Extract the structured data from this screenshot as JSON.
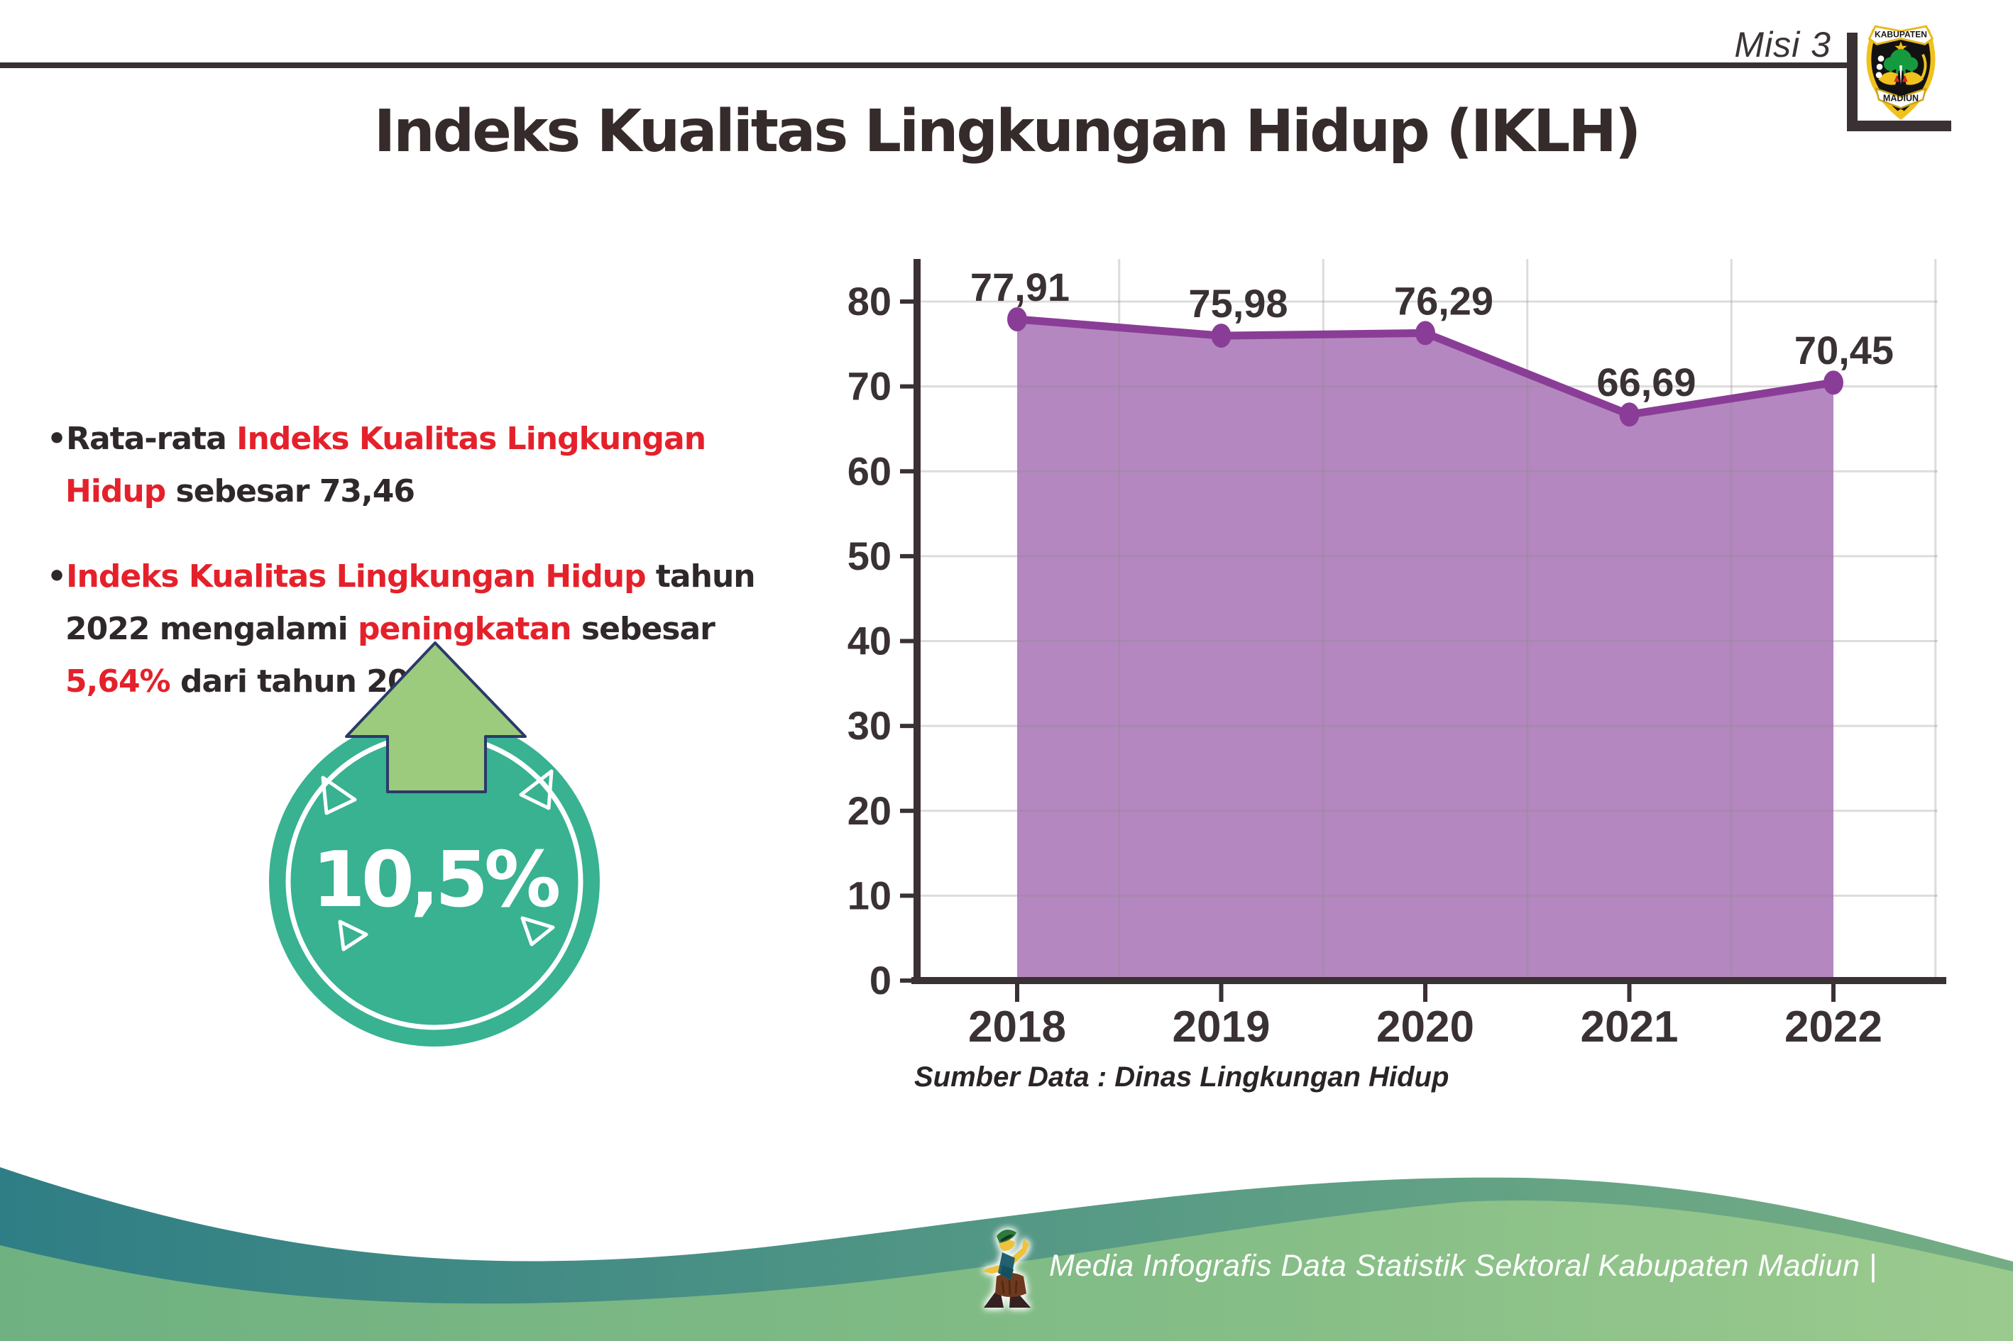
{
  "header": {
    "misi_label": "Misi 3"
  },
  "logo": {
    "top_text": "KABUPATEN",
    "bottom_text": "MADIUN"
  },
  "title": "Indeks Kualitas Lingkungan Hidup (IKLH)",
  "bullets": [
    {
      "segments": [
        {
          "text": "Rata-rata ",
          "color": "dark"
        },
        {
          "text": "Indeks Kualitas Lingkungan Hidup",
          "color": "red"
        },
        {
          "text": " sebesar 73,46",
          "color": "dark"
        }
      ]
    },
    {
      "segments": [
        {
          "text": "Indeks Kualitas Lingkungan Hidup",
          "color": "red"
        },
        {
          "text": " tahun 2022 mengalami ",
          "color": "dark"
        },
        {
          "text": "peningkatan",
          "color": "red"
        },
        {
          "text": " sebesar ",
          "color": "dark"
        },
        {
          "text": "5,64%",
          "color": "red"
        },
        {
          "text": " dari tahun 2021",
          "color": "dark"
        }
      ]
    }
  ],
  "badge": {
    "value": "10,5%",
    "direction": "up-arrow"
  },
  "chart_data": {
    "type": "area",
    "categories": [
      "2018",
      "2019",
      "2020",
      "2021",
      "2022"
    ],
    "values": [
      77.91,
      75.98,
      76.29,
      66.69,
      70.45
    ],
    "point_labels": [
      "77,91",
      "75,98",
      "76,29",
      "66,69",
      "70,45"
    ],
    "title": "",
    "xlabel": "",
    "ylabel": "",
    "ylim": [
      0,
      80
    ],
    "ytick_step": 10,
    "grid": true,
    "legend": "none",
    "source": "Sumber Data : Dinas Lingkungan Hidup"
  },
  "source_note": "Sumber Data : Dinas Lingkungan Hidup",
  "footer": {
    "text": "Media Infografis Data Statistik Sektoral Kabupaten Madiun |"
  },
  "colors": {
    "area_fill": "#b282bd",
    "trend_line": "#8a3d96",
    "axis": "#3a3134",
    "text_dark": "#2f282a",
    "text_red": "#e4212b",
    "badge_circle": "#38b291",
    "badge_arrow": "#9ccb7e",
    "footer_teal": "#2f7e85",
    "footer_green": "#98c98c"
  }
}
